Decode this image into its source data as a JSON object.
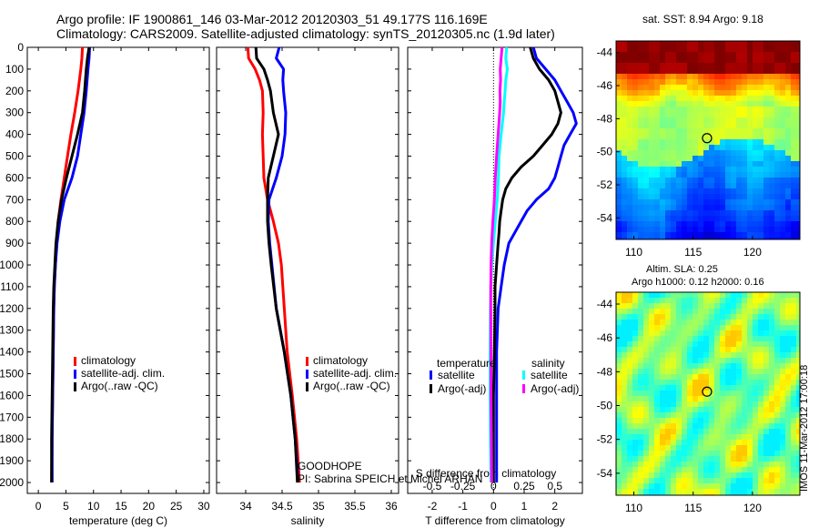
{
  "header": {
    "line1": "Argo profile: IF 1900861_146 03-Mar-2012 20120303_51 49.177S 116.169E",
    "line2": "Climatology: CARS2009. Satellite-adjusted climatology: synTS_20120305.nc (1.9d later)"
  },
  "sst_map": {
    "title": "sat. SST: 8.94 Argo: 9.18"
  },
  "sla_map": {
    "title_line1": "Altim. SLA: 0.25",
    "title_line2": "Argo h1000: 0.12 h2000: 0.16"
  },
  "stamp": "IMOS 11-Mar-2012 17:00:18",
  "annotations": {
    "float_name": "GOODHOPE",
    "pi": "PI: Sabrina SPEICH et Michel ARHAN"
  },
  "colors": {
    "climatology": "#ff0000",
    "satellite": "#0000ff",
    "argo": "#000000",
    "t_satellite": "#0000ff",
    "t_argo": "#000000",
    "s_satellite": "#00ffff",
    "s_argo": "#ff00ff"
  },
  "chart_data": [
    {
      "type": "line",
      "xlabel": "temperature (deg C)",
      "xlim": [
        -2,
        31
      ],
      "ylim": [
        2050,
        0
      ],
      "xticks": [
        0,
        5,
        10,
        15,
        20,
        25,
        30
      ],
      "yticks": [
        0,
        100,
        200,
        300,
        400,
        500,
        600,
        700,
        800,
        900,
        1000,
        1100,
        1200,
        1300,
        1400,
        1500,
        1600,
        1700,
        1800,
        1900,
        2000
      ],
      "legend_loc": "lower-left",
      "series": [
        {
          "name": "climatology",
          "color": "#ff0000",
          "y": [
            0,
            50,
            100,
            200,
            300,
            400,
            500,
            600,
            700,
            800,
            900,
            1000,
            1100,
            1200,
            1400,
            1600,
            1800,
            2000
          ],
          "values": [
            8.0,
            7.9,
            7.7,
            7.2,
            6.6,
            5.9,
            5.3,
            4.7,
            4.1,
            3.6,
            3.3,
            3.1,
            2.9,
            2.8,
            2.7,
            2.6,
            2.5,
            2.4
          ]
        },
        {
          "name": "satellite-adj. clim.",
          "color": "#0000ff",
          "y": [
            0,
            50,
            100,
            200,
            300,
            400,
            500,
            600,
            700,
            800,
            900,
            1000,
            1100,
            1200,
            1400,
            1600,
            1800,
            2000
          ],
          "values": [
            9.3,
            9.2,
            9.0,
            8.7,
            8.3,
            7.7,
            7.1,
            6.1,
            4.7,
            3.9,
            3.4,
            3.1,
            2.9,
            2.8,
            2.7,
            2.6,
            2.5,
            2.5
          ]
        },
        {
          "name": "Argo(..raw -QC)",
          "color": "#000000",
          "y": [
            0,
            50,
            100,
            200,
            300,
            400,
            500,
            600,
            700,
            800,
            900,
            1000,
            1100,
            1200,
            1400,
            1600,
            1800,
            2000
          ],
          "values": [
            9.2,
            8.9,
            8.7,
            8.4,
            8.0,
            7.1,
            6.1,
            5.1,
            4.2,
            3.6,
            3.2,
            3.0,
            2.8,
            2.7,
            2.6,
            2.5,
            2.4,
            2.4
          ]
        }
      ]
    },
    {
      "type": "line",
      "xlabel": "salinity",
      "xlim": [
        33.6,
        36.1
      ],
      "ylim": [
        2050,
        0
      ],
      "xticks": [
        34,
        34.5,
        35,
        35.5,
        36
      ],
      "legend_loc": "lower-left",
      "series": [
        {
          "name": "climatology",
          "color": "#ff0000",
          "y": [
            0,
            50,
            100,
            150,
            200,
            300,
            400,
            500,
            600,
            700,
            800,
            900,
            1000,
            1200,
            1400,
            1600,
            1800,
            2000
          ],
          "values": [
            34.03,
            34.04,
            34.13,
            34.19,
            34.23,
            34.24,
            34.23,
            34.24,
            34.25,
            34.3,
            34.38,
            34.45,
            34.49,
            34.53,
            34.57,
            34.64,
            34.7,
            34.74
          ]
        },
        {
          "name": "satellite-adj. clim.",
          "color": "#0000ff",
          "y": [
            0,
            50,
            100,
            150,
            200,
            300,
            400,
            500,
            600,
            700,
            800,
            900,
            1000,
            1200,
            1400,
            1600,
            1800,
            2000
          ],
          "values": [
            34.46,
            34.42,
            34.52,
            34.51,
            34.52,
            34.55,
            34.54,
            34.5,
            34.42,
            34.32,
            34.31,
            34.33,
            34.36,
            34.42,
            34.53,
            34.62,
            34.68,
            34.72
          ]
        },
        {
          "name": "Argo(..raw -QC)",
          "color": "#000000",
          "y": [
            0,
            50,
            100,
            150,
            200,
            300,
            400,
            500,
            600,
            700,
            800,
            900,
            1000,
            1200,
            1400,
            1600,
            1800,
            2000
          ],
          "values": [
            34.14,
            34.15,
            34.25,
            34.3,
            34.34,
            34.38,
            34.45,
            34.38,
            34.31,
            34.3,
            34.3,
            34.32,
            34.35,
            34.42,
            34.53,
            34.62,
            34.68,
            34.71
          ]
        }
      ]
    },
    {
      "type": "line",
      "xlabel": "T difference from climatology",
      "xlabel2": "S difference from climatology",
      "xlim": [
        -2.8,
        2.9
      ],
      "ylim": [
        2050,
        0
      ],
      "xticks": [
        -2,
        -1,
        0,
        1,
        2
      ],
      "xticks2": [
        "-0.5",
        "-0.25",
        "0",
        "0.25",
        "0.5"
      ],
      "xticks2_pos": [
        -2,
        -1,
        0,
        1,
        2
      ],
      "legend_titles": [
        "temperature",
        "salinity"
      ],
      "series": [
        {
          "name": "satellite",
          "group": "temperature",
          "color": "#0000ff",
          "y": [
            0,
            50,
            100,
            150,
            200,
            250,
            300,
            350,
            400,
            450,
            500,
            550,
            600,
            650,
            700,
            750,
            800,
            850,
            900,
            1000,
            1100,
            1200,
            1400,
            1600,
            1800,
            2000
          ],
          "values": [
            1.3,
            1.4,
            1.7,
            2.0,
            2.2,
            2.4,
            2.6,
            2.7,
            2.5,
            2.3,
            2.2,
            2.1,
            2.0,
            1.8,
            1.4,
            1.1,
            0.9,
            0.7,
            0.5,
            0.35,
            0.25,
            0.15,
            0.1,
            0.1,
            0.1,
            0.1
          ]
        },
        {
          "name": "Argo(-adj)",
          "group": "temperature",
          "color": "#000000",
          "y": [
            0,
            50,
            100,
            150,
            200,
            250,
            300,
            350,
            400,
            450,
            500,
            550,
            600,
            650,
            700,
            750,
            800,
            850,
            900,
            1000,
            1100,
            1200,
            1400,
            1600,
            1800,
            2000
          ],
          "values": [
            1.2,
            1.3,
            1.5,
            1.8,
            2.0,
            2.1,
            2.2,
            2.1,
            1.9,
            1.6,
            1.3,
            0.9,
            0.6,
            0.4,
            0.3,
            0.25,
            0.2,
            0.18,
            0.15,
            0.1,
            0.05,
            0.05,
            0.03,
            0.0,
            0.0,
            0.0
          ]
        },
        {
          "name": "satellite",
          "group": "salinity",
          "color": "#00ffff",
          "y": [
            0,
            50,
            100,
            150,
            200,
            250,
            300,
            400,
            500,
            600,
            700,
            800,
            900,
            1000,
            1100,
            1200,
            1400,
            1600,
            1800,
            2000
          ],
          "values": [
            0.43,
            0.4,
            0.45,
            0.4,
            0.38,
            0.35,
            0.33,
            0.25,
            0.18,
            0.16,
            0.12,
            0.06,
            0.0,
            -0.06,
            -0.09,
            -0.1,
            -0.11,
            -0.11,
            -0.1,
            -0.08
          ]
        },
        {
          "name": "Argo(-adj)",
          "group": "salinity",
          "color": "#ff00ff",
          "y": [
            0,
            50,
            100,
            150,
            200,
            250,
            300,
            400,
            500,
            600,
            700,
            800,
            900,
            1000,
            1100,
            1200,
            1400,
            1600,
            1800,
            2000
          ],
          "values": [
            0.28,
            0.25,
            0.22,
            0.23,
            0.21,
            0.22,
            0.2,
            0.15,
            0.1,
            0.06,
            0.03,
            -0.02,
            -0.06,
            -0.08,
            -0.09,
            -0.09,
            -0.08,
            -0.08,
            -0.07,
            -0.06
          ]
        }
      ]
    },
    {
      "type": "heatmap",
      "title": "sat. SST: 8.94 Argo: 9.18",
      "xlim": [
        108.5,
        124
      ],
      "ylim": [
        -55.3,
        -43.3
      ],
      "xticks": [
        110,
        115,
        120
      ],
      "yticks": [
        -44,
        -46,
        -48,
        -50,
        -52,
        -54
      ],
      "marker": {
        "lon": 116.169,
        "lat": -49.177
      }
    },
    {
      "type": "heatmap",
      "title": "Altim. SLA: 0.25",
      "xlim": [
        108.5,
        124
      ],
      "ylim": [
        -55.3,
        -43.3
      ],
      "xticks": [
        110,
        115,
        120
      ],
      "yticks": [
        -44,
        -46,
        -48,
        -50,
        -52,
        -54
      ],
      "marker": {
        "lon": 116.169,
        "lat": -49.177
      }
    }
  ]
}
